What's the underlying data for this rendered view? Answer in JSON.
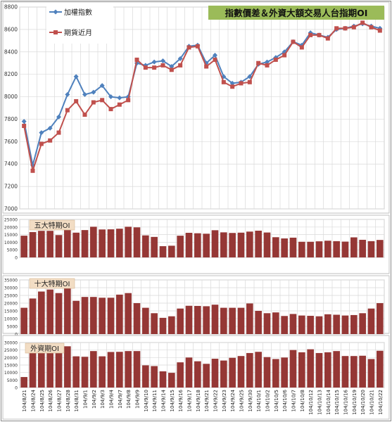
{
  "chart_data": [
    {
      "type": "line",
      "title": "指數價差＆外資大額交易人台指期OI",
      "ylim": [
        7000,
        8800
      ],
      "yticks": [
        7000,
        7200,
        7400,
        7600,
        7800,
        8000,
        8200,
        8400,
        8600,
        8800
      ],
      "series": [
        {
          "name": "加權指數",
          "color": "#4f81bd",
          "values": [
            7780,
            7390,
            7680,
            7720,
            7820,
            8020,
            8180,
            8020,
            8040,
            8100,
            8000,
            7990,
            8000,
            8300,
            8280,
            8310,
            8320,
            8270,
            8340,
            8450,
            8460,
            8300,
            8370,
            8180,
            8120,
            8130,
            8180,
            8290,
            8310,
            8350,
            8400,
            8490,
            8460,
            8570,
            8550,
            8530,
            8600,
            8610,
            8630,
            8650,
            8630,
            8610
          ]
        },
        {
          "name": "期貨近月",
          "color": "#c0504d",
          "values": [
            7740,
            7340,
            7580,
            7610,
            7680,
            7880,
            7960,
            7840,
            7950,
            7970,
            7890,
            7930,
            7970,
            8330,
            8260,
            8260,
            8280,
            8240,
            8280,
            8440,
            8450,
            8270,
            8330,
            8130,
            8090,
            8120,
            8130,
            8300,
            8280,
            8330,
            8370,
            8490,
            8440,
            8550,
            8550,
            8520,
            8610,
            8610,
            8620,
            8660,
            8620,
            8590
          ]
        }
      ]
    },
    {
      "type": "bar",
      "title": "五大特期OI",
      "ylim": [
        0,
        25000
      ],
      "yticks": [
        0,
        5000,
        10000,
        15000,
        20000,
        25000
      ],
      "color": "#953735",
      "values": [
        14300,
        16700,
        17500,
        17500,
        14700,
        20000,
        16300,
        18000,
        20200,
        18400,
        18500,
        18900,
        20200,
        19800,
        14500,
        13500,
        7400,
        7700,
        14300,
        16200,
        15900,
        15600,
        17900,
        16500,
        16100,
        16300,
        17000,
        17600,
        16400,
        13300,
        12500,
        13000,
        10300,
        10300,
        10600,
        11000,
        10700,
        10400,
        13200,
        11600,
        10700,
        11500
      ]
    },
    {
      "type": "bar",
      "title": "十大特期OI",
      "ylim": [
        0,
        35000
      ],
      "yticks": [
        0,
        5000,
        10000,
        15000,
        20000,
        25000,
        30000,
        35000
      ],
      "color": "#953735",
      "values": [
        17000,
        23000,
        27500,
        28800,
        26500,
        30000,
        21500,
        24000,
        24000,
        23500,
        23500,
        25500,
        26500,
        20000,
        17000,
        13500,
        10500,
        11500,
        16500,
        18300,
        18200,
        18000,
        19000,
        17000,
        17000,
        17000,
        19800,
        15000,
        13500,
        14000,
        11700,
        13000,
        12000,
        11800,
        11500,
        12800,
        12500,
        12000,
        12300,
        13500,
        16500,
        20000
      ]
    },
    {
      "type": "bar",
      "title": "外資期OI",
      "ylim": [
        0,
        30000
      ],
      "yticks": [
        0,
        5000,
        10000,
        15000,
        20000,
        25000,
        30000
      ],
      "color": "#953735",
      "values": [
        7000,
        24500,
        25500,
        24000,
        23000,
        27500,
        20800,
        20500,
        24300,
        20800,
        23700,
        23800,
        24300,
        24300,
        14800,
        14300,
        10800,
        9800,
        16800,
        20000,
        17500,
        15800,
        19200,
        18000,
        19800,
        21000,
        23000,
        23800,
        20300,
        19000,
        20000,
        25000,
        23500,
        25500,
        23000,
        23500,
        24300,
        21000,
        21000,
        21200,
        19000,
        24500
      ]
    }
  ],
  "x_dates": [
    "104/8/21",
    "104/8/24",
    "104/8/25",
    "104/8/26",
    "104/8/27",
    "104/8/28",
    "104/8/31",
    "104/9/1",
    "104/9/2",
    "104/9/3",
    "104/9/4",
    "104/9/7",
    "104/9/8",
    "104/9/9",
    "104/9/10",
    "104/9/11",
    "104/9/14",
    "104/9/15",
    "104/9/16",
    "104/9/17",
    "104/9/18",
    "104/9/21",
    "104/9/22",
    "104/9/23",
    "104/9/24",
    "104/9/25",
    "104/9/30",
    "104/10/1",
    "104/10/2",
    "104/10/5",
    "104/10/6",
    "104/10/7",
    "104/10/8",
    "104/10/12",
    "104/10/13",
    "104/10/14",
    "104/10/15",
    "104/10/16",
    "104/10/19",
    "104/10/20",
    "104/10/21",
    "104/10/22"
  ]
}
